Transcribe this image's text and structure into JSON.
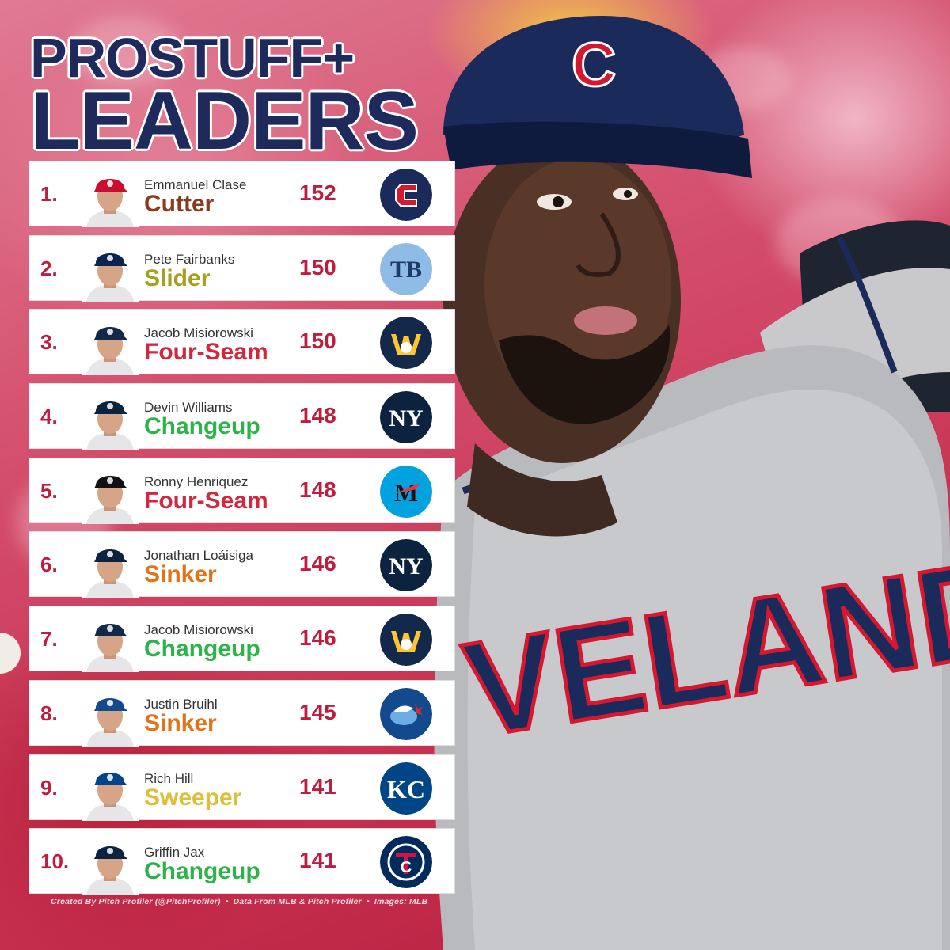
{
  "title": {
    "line1": "PROSTUFF+",
    "line2": "LEADERS"
  },
  "rows": [
    {
      "rank": "1.",
      "name": "Emmanuel Clase",
      "pitch": "Cutter",
      "pitch_color": "#8b3a1c",
      "score": "152",
      "team_icon": "guardians-logo-icon"
    },
    {
      "rank": "2.",
      "name": "Pete Fairbanks",
      "pitch": "Slider",
      "pitch_color": "#a6a020",
      "score": "150",
      "team_icon": "rays-logo-icon"
    },
    {
      "rank": "3.",
      "name": "Jacob Misiorowski",
      "pitch": "Four-Seam",
      "pitch_color": "#d3273e",
      "score": "150",
      "team_icon": "brewers-logo-icon"
    },
    {
      "rank": "4.",
      "name": "Devin Williams",
      "pitch": "Changeup",
      "pitch_color": "#2db34a",
      "score": "148",
      "team_icon": "yankees-logo-icon"
    },
    {
      "rank": "5.",
      "name": "Ronny Henriquez",
      "pitch": "Four-Seam",
      "pitch_color": "#d3273e",
      "score": "148",
      "team_icon": "marlins-logo-icon"
    },
    {
      "rank": "6.",
      "name": "Jonathan Loáisiga",
      "pitch": "Sinker",
      "pitch_color": "#e27318",
      "score": "146",
      "team_icon": "yankees-logo-icon"
    },
    {
      "rank": "7.",
      "name": "Jacob Misiorowski",
      "pitch": "Changeup",
      "pitch_color": "#2db34a",
      "score": "146",
      "team_icon": "brewers-logo-icon"
    },
    {
      "rank": "8.",
      "name": "Justin Bruihl",
      "pitch": "Sinker",
      "pitch_color": "#e27318",
      "score": "145",
      "team_icon": "blue-jays-logo-icon"
    },
    {
      "rank": "9.",
      "name": "Rich Hill",
      "pitch": "Sweeper",
      "pitch_color": "#dcbf3a",
      "score": "141",
      "team_icon": "royals-logo-icon"
    },
    {
      "rank": "10.",
      "name": "Griffin Jax",
      "pitch": "Changeup",
      "pitch_color": "#2db34a",
      "score": "141",
      "team_icon": "twins-logo-icon"
    }
  ],
  "jersey_text": "VELAND",
  "cap_letter": "C",
  "credit": {
    "part1": "Created By Pitch Profiler (@PitchProfiler)",
    "part2": "Data From MLB & Pitch Profiler",
    "part3": "Images: MLB",
    "separator": "•"
  },
  "colors": {
    "title_navy": "#1f2a5c",
    "rank_red": "#be1e3c",
    "guardians_navy": "#1a2a5a",
    "guardians_red": "#d5172f",
    "rays_light_blue": "#8fbce6",
    "brewers_navy": "#13294b",
    "brewers_gold": "#ffc52f",
    "yankees_navy": "#0c2340",
    "marlins_teal": "#00a3e0",
    "blue_jays_blue": "#134a8e",
    "royals_blue": "#004687",
    "twins_navy": "#002b5c"
  }
}
